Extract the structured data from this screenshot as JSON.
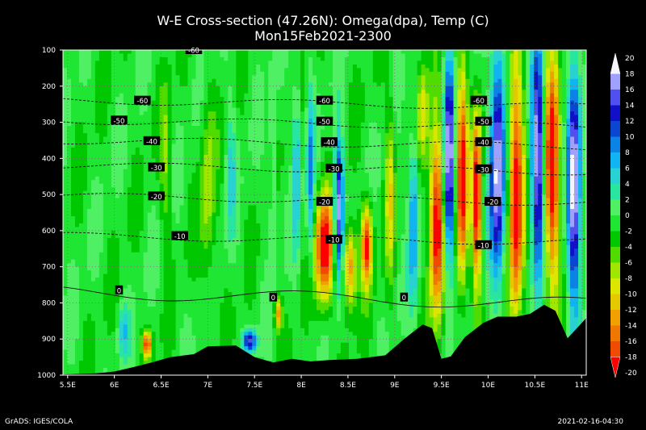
{
  "chart_data": {
    "type": "heatmap",
    "title": "W-E Cross-section (47.26N): Omega(dpa), Temp (C)",
    "subtitle": "Mon15Feb2021-2300",
    "x_ticks": [
      "5.5E",
      "6E",
      "6.5E",
      "7E",
      "7.5E",
      "8E",
      "8.5E",
      "9E",
      "9.5E",
      "10E",
      "10.5E",
      "11E"
    ],
    "x_values": [
      5.5,
      6,
      6.5,
      7,
      7.5,
      8,
      8.5,
      9,
      9.5,
      10,
      10.5,
      11
    ],
    "xlim": [
      5.45,
      11.05
    ],
    "y_ticks": [
      "100",
      "200",
      "300",
      "400",
      "500",
      "600",
      "700",
      "800",
      "900",
      "1000"
    ],
    "y_values": [
      100,
      200,
      300,
      400,
      500,
      600,
      700,
      800,
      900,
      1000
    ],
    "ylim": [
      100,
      1000
    ],
    "colorbar": {
      "ticks": [
        "20",
        "18",
        "16",
        "14",
        "12",
        "10",
        "8",
        "6",
        "4",
        "2",
        "0",
        "-2",
        "-4",
        "-6",
        "-8",
        "-10",
        "-12",
        "-14",
        "-16",
        "-18",
        "-20"
      ],
      "colors": [
        "#f5f5ff",
        "#a0a0ff",
        "#5050f0",
        "#1010c8",
        "#0a46d2",
        "#0a82e6",
        "#10b4f0",
        "#28d2d2",
        "#28e6a0",
        "#50f064",
        "#1ee632",
        "#00c800",
        "#50dc00",
        "#a0e600",
        "#dce600",
        "#e6c800",
        "#f0a000",
        "#f07800",
        "#f04b00",
        "#ff0000"
      ]
    },
    "temperature_contours": [
      {
        "value": -60,
        "label": "-60",
        "pressure": 240
      },
      {
        "value": -50,
        "label": "-50",
        "pressure": 295
      },
      {
        "value": -40,
        "label": "-40",
        "pressure": 350
      },
      {
        "value": -30,
        "label": "-30",
        "pressure": 420
      },
      {
        "value": -20,
        "label": "-20",
        "pressure": 505
      },
      {
        "value": -10,
        "label": "-10",
        "pressure": 615
      },
      {
        "value": 0,
        "label": "0",
        "pressure": 770
      }
    ],
    "contour_label_positions": [
      {
        "label": "-60",
        "x": 6.85,
        "p": 100
      },
      {
        "label": "-60",
        "x": 6.3,
        "p": 240
      },
      {
        "label": "-60",
        "x": 8.25,
        "p": 240
      },
      {
        "label": "-60",
        "x": 9.9,
        "p": 240
      },
      {
        "label": "-50",
        "x": 6.05,
        "p": 295
      },
      {
        "label": "-50",
        "x": 8.25,
        "p": 298
      },
      {
        "label": "-50",
        "x": 9.95,
        "p": 298
      },
      {
        "label": "-40",
        "x": 6.4,
        "p": 352
      },
      {
        "label": "-40",
        "x": 8.3,
        "p": 355
      },
      {
        "label": "-40",
        "x": 9.95,
        "p": 355
      },
      {
        "label": "-30",
        "x": 6.45,
        "p": 425
      },
      {
        "label": "-30",
        "x": 8.35,
        "p": 428
      },
      {
        "label": "-30",
        "x": 9.95,
        "p": 430
      },
      {
        "label": "-20",
        "x": 6.45,
        "p": 505
      },
      {
        "label": "-20",
        "x": 8.25,
        "p": 520
      },
      {
        "label": "-20",
        "x": 10.05,
        "p": 520
      },
      {
        "label": "-10",
        "x": 6.7,
        "p": 615
      },
      {
        "label": "-10",
        "x": 8.35,
        "p": 625
      },
      {
        "label": "-10",
        "x": 9.95,
        "p": 640
      },
      {
        "label": "0",
        "x": 6.05,
        "p": 765
      },
      {
        "label": "0",
        "x": 7.7,
        "p": 785
      },
      {
        "label": "0",
        "x": 9.1,
        "p": 785
      }
    ],
    "terrain_pressure": [
      [
        5.45,
        998
      ],
      [
        5.8,
        995
      ],
      [
        6.0,
        990
      ],
      [
        6.2,
        978
      ],
      [
        6.4,
        965
      ],
      [
        6.6,
        950
      ],
      [
        6.85,
        942
      ],
      [
        7.0,
        920
      ],
      [
        7.3,
        918
      ],
      [
        7.5,
        950
      ],
      [
        7.7,
        965
      ],
      [
        7.9,
        955
      ],
      [
        8.1,
        962
      ],
      [
        8.3,
        958
      ],
      [
        8.6,
        955
      ],
      [
        8.9,
        945
      ],
      [
        9.1,
        900
      ],
      [
        9.3,
        860
      ],
      [
        9.4,
        870
      ],
      [
        9.5,
        955
      ],
      [
        9.6,
        948
      ],
      [
        9.75,
        895
      ],
      [
        9.95,
        855
      ],
      [
        10.1,
        838
      ],
      [
        10.3,
        838
      ],
      [
        10.45,
        830
      ],
      [
        10.6,
        805
      ],
      [
        10.72,
        822
      ],
      [
        10.85,
        898
      ],
      [
        11.05,
        842
      ]
    ],
    "omega_features": [
      {
        "x": 8.25,
        "p": 650,
        "v": -20,
        "w": 0.1,
        "h": 150
      },
      {
        "x": 8.52,
        "p": 700,
        "v": -14,
        "w": 0.07,
        "h": 110
      },
      {
        "x": 8.4,
        "p": 540,
        "v": 20,
        "w": 0.05,
        "h": 190
      },
      {
        "x": 8.7,
        "p": 640,
        "v": -18,
        "w": 0.06,
        "h": 110
      },
      {
        "x": 9.45,
        "p": 580,
        "v": -20,
        "w": 0.08,
        "h": 260
      },
      {
        "x": 9.58,
        "p": 420,
        "v": 20,
        "w": 0.06,
        "h": 300
      },
      {
        "x": 9.72,
        "p": 450,
        "v": -20,
        "w": 0.06,
        "h": 300
      },
      {
        "x": 9.88,
        "p": 520,
        "v": -20,
        "w": 0.05,
        "h": 250
      },
      {
        "x": 10.1,
        "p": 420,
        "v": 20,
        "w": 0.08,
        "h": 330
      },
      {
        "x": 10.3,
        "p": 500,
        "v": -20,
        "w": 0.08,
        "h": 360
      },
      {
        "x": 10.53,
        "p": 400,
        "v": 20,
        "w": 0.07,
        "h": 320
      },
      {
        "x": 10.68,
        "p": 440,
        "v": -20,
        "w": 0.08,
        "h": 330
      },
      {
        "x": 10.92,
        "p": 480,
        "v": 20,
        "w": 0.07,
        "h": 340
      },
      {
        "x": 6.35,
        "p": 915,
        "v": -16,
        "w": 0.05,
        "h": 35
      },
      {
        "x": 7.45,
        "p": 905,
        "v": 16,
        "w": 0.07,
        "h": 30
      },
      {
        "x": 7.75,
        "p": 830,
        "v": -12,
        "w": 0.04,
        "h": 45
      },
      {
        "x": 6.1,
        "p": 880,
        "v": 6,
        "w": 0.06,
        "h": 70
      },
      {
        "x": 7.0,
        "p": 500,
        "v": -6,
        "w": 0.08,
        "h": 280
      },
      {
        "x": 6.55,
        "p": 420,
        "v": -5,
        "w": 0.06,
        "h": 220
      },
      {
        "x": 7.25,
        "p": 420,
        "v": 5,
        "w": 0.05,
        "h": 200
      },
      {
        "x": 7.7,
        "p": 460,
        "v": 5,
        "w": 0.04,
        "h": 260
      },
      {
        "x": 7.95,
        "p": 400,
        "v": 8,
        "w": 0.04,
        "h": 250
      },
      {
        "x": 8.1,
        "p": 460,
        "v": 9,
        "w": 0.04,
        "h": 250
      },
      {
        "x": 8.95,
        "p": 480,
        "v": -8,
        "w": 0.05,
        "h": 250
      },
      {
        "x": 9.2,
        "p": 560,
        "v": 10,
        "w": 0.05,
        "h": 250
      },
      {
        "x": 9.3,
        "p": 280,
        "v": -8,
        "w": 0.06,
        "h": 160
      }
    ]
  },
  "footer": {
    "left": "GrADS: IGES/COLA",
    "right": "2021-02-16-04:30"
  }
}
